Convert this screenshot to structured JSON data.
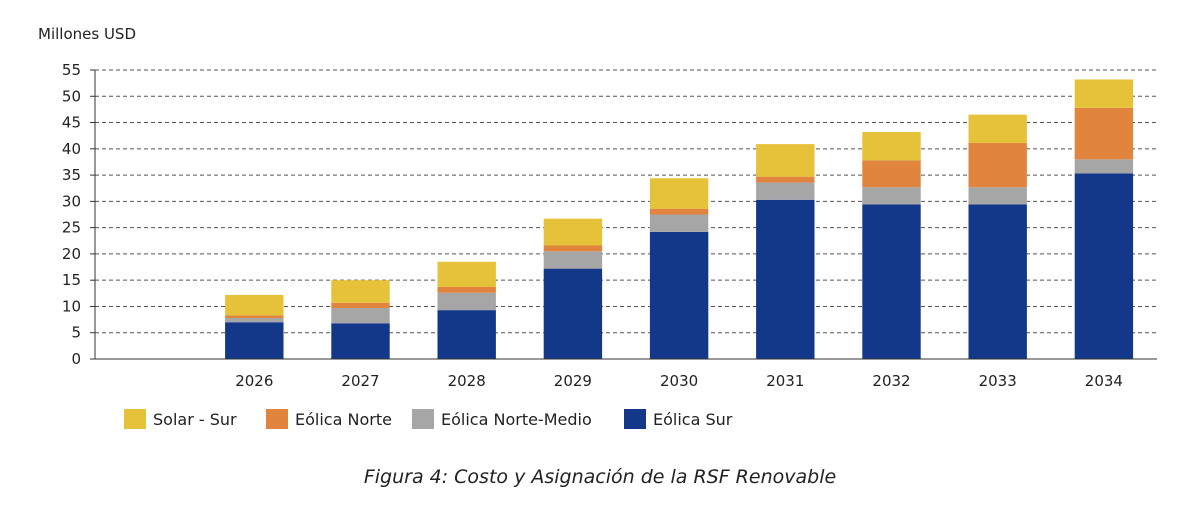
{
  "chart_data": {
    "type": "bar",
    "stacked": true,
    "ylabel": "Millones USD",
    "ylim": [
      0,
      55
    ],
    "yticks": [
      0,
      5,
      10,
      15,
      20,
      25,
      30,
      35,
      40,
      45,
      50,
      55
    ],
    "grid": true,
    "legend_position": "bottom-left",
    "categories": [
      "",
      "2026",
      "2027",
      "2028",
      "2029",
      "2030",
      "2031",
      "2032",
      "2033",
      "2034"
    ],
    "series": [
      {
        "name": "Eólica Sur",
        "color": "#13388A",
        "values": [
          0,
          7.0,
          6.8,
          9.3,
          17.2,
          24.2,
          30.3,
          29.4,
          29.4,
          35.3
        ]
      },
      {
        "name": "Eólica Norte-Medio",
        "color": "#A6A6A6",
        "values": [
          0,
          0.8,
          2.9,
          3.3,
          3.3,
          3.3,
          3.3,
          3.3,
          3.3,
          2.7
        ]
      },
      {
        "name": "Eólica Norte",
        "color": "#E0843E",
        "values": [
          0,
          0.5,
          1.0,
          1.1,
          1.1,
          1.1,
          1.1,
          5.1,
          8.4,
          9.8
        ]
      },
      {
        "name": "Solar - Sur",
        "color": "#E6C23A",
        "values": [
          0,
          3.9,
          4.3,
          4.8,
          5.1,
          5.8,
          6.2,
          5.4,
          5.4,
          5.4
        ]
      }
    ],
    "legend_order": [
      "Solar - Sur",
      "Eólica Norte",
      "Eólica Norte-Medio",
      "Eólica Sur"
    ]
  },
  "caption": "Figura 4: Costo y Asignación de la RSF Renovable"
}
